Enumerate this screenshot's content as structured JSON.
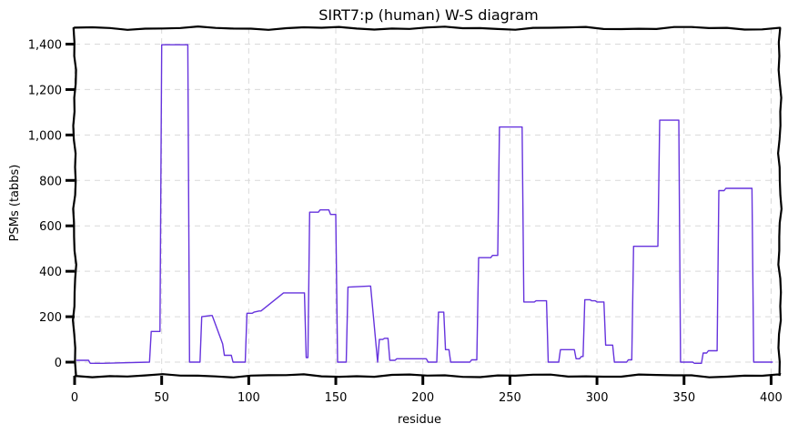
{
  "chart_data": {
    "type": "line",
    "title": "SIRT7:p (human) W-S diagram",
    "xlabel": "residue",
    "ylabel": "PSMs (tabbs)",
    "xlim": [
      0,
      405
    ],
    "ylim": [
      -60,
      1470
    ],
    "xticks": [
      0,
      50,
      100,
      150,
      200,
      250,
      300,
      350,
      400
    ],
    "yticks": [
      0,
      200,
      400,
      600,
      800,
      1000,
      1200,
      1400
    ],
    "xtick_labels": [
      "0",
      "50",
      "100",
      "150",
      "200",
      "250",
      "300",
      "350",
      "400"
    ],
    "ytick_labels": [
      "0",
      "200",
      "400",
      "600",
      "800",
      "1,000",
      "1,200",
      "1,400"
    ],
    "grid": true,
    "series": [
      {
        "color": "#6633dd",
        "x": [
          1,
          8,
          9,
          16,
          43,
          44,
          49,
          50,
          65,
          66,
          72,
          73,
          78,
          79,
          85,
          86,
          90,
          91,
          98,
          99,
          102,
          103,
          106,
          107,
          120,
          121,
          123,
          124,
          132,
          133,
          134,
          135,
          140,
          141,
          146,
          147,
          150,
          151,
          156,
          157,
          169,
          170,
          174,
          175,
          177,
          178,
          180,
          181,
          184,
          185,
          202,
          203,
          208,
          209,
          212,
          213,
          215,
          216,
          227,
          228,
          231,
          232,
          239,
          240,
          243,
          244,
          257,
          258,
          264,
          265,
          271,
          272,
          274,
          275,
          278,
          279,
          287,
          288,
          290,
          291,
          292,
          293,
          296,
          297,
          299,
          300,
          304,
          305,
          309,
          310,
          317,
          318,
          320,
          321,
          326,
          327,
          335,
          336,
          347,
          348,
          355,
          356,
          360,
          361,
          363,
          364,
          369,
          370,
          373,
          374,
          380,
          381,
          389,
          390,
          401
        ],
        "values": [
          8,
          8,
          -5,
          -5,
          0,
          135,
          135,
          1397,
          1397,
          0,
          0,
          200,
          205,
          205,
          80,
          30,
          30,
          0,
          0,
          215,
          215,
          220,
          225,
          225,
          305,
          305,
          305,
          305,
          305,
          20,
          20,
          660,
          660,
          670,
          670,
          650,
          650,
          0,
          0,
          330,
          335,
          335,
          0,
          100,
          100,
          105,
          105,
          8,
          8,
          15,
          15,
          0,
          0,
          220,
          220,
          55,
          55,
          0,
          0,
          10,
          10,
          460,
          460,
          470,
          470,
          1035,
          1035,
          265,
          265,
          270,
          270,
          0,
          0,
          0,
          0,
          55,
          55,
          15,
          15,
          25,
          25,
          275,
          275,
          270,
          270,
          265,
          265,
          75,
          75,
          0,
          0,
          10,
          10,
          510,
          510,
          510,
          510,
          1065,
          1065,
          0,
          0,
          -5,
          -5,
          40,
          40,
          50,
          50,
          755,
          755,
          765,
          765,
          765,
          765,
          0,
          0
        ]
      }
    ]
  }
}
